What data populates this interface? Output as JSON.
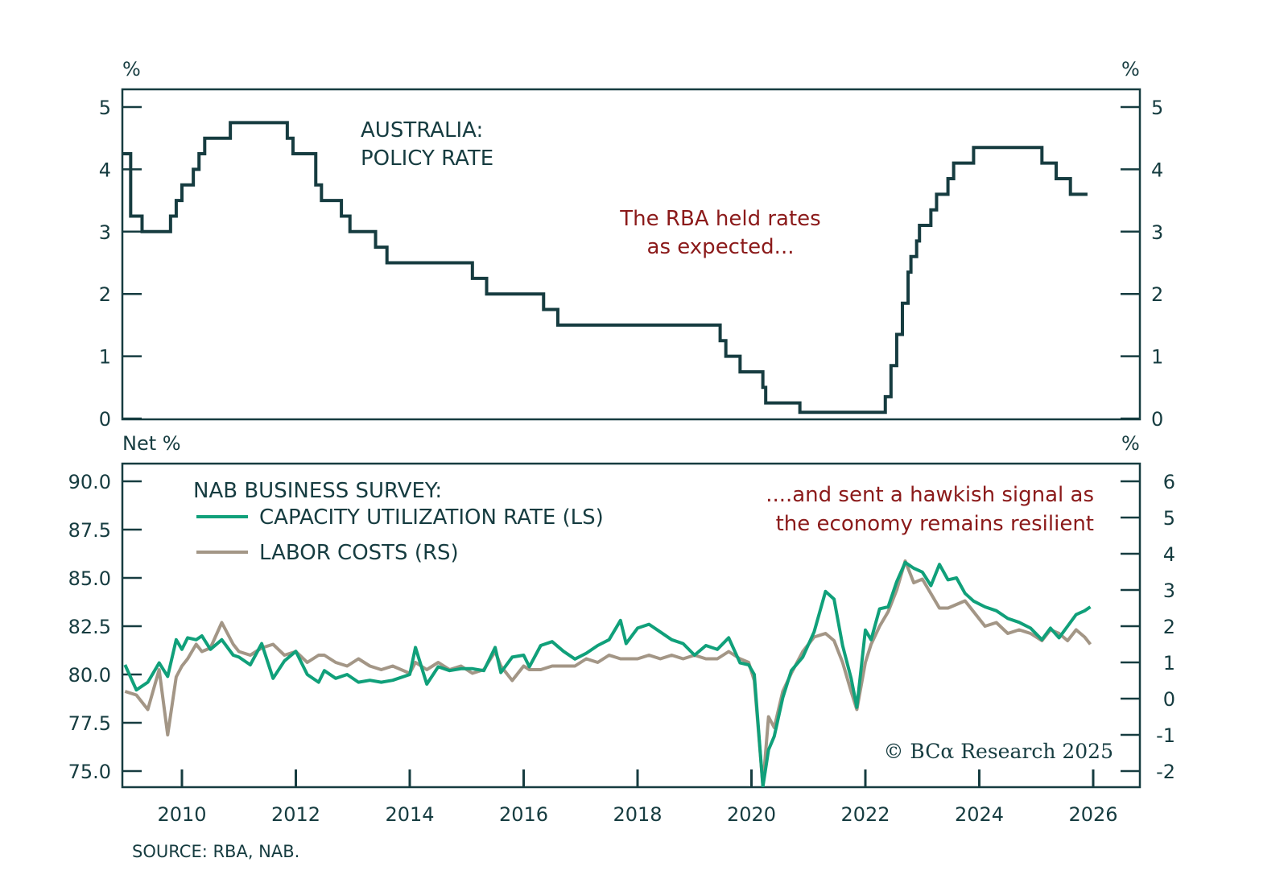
{
  "chart_data": [
    {
      "type": "line",
      "panel": "top",
      "title": "AUSTRALIA: POLICY RATE",
      "title_lines": [
        "AUSTRALIA:",
        "POLICY RATE"
      ],
      "annotation_lines": [
        "The RBA held rates",
        "as expected..."
      ],
      "ylabel_left": "%",
      "ylabel_right": "%",
      "ylim": [
        0,
        5
      ],
      "yticks": [
        0,
        1,
        2,
        3,
        4,
        5
      ],
      "xlim": [
        2009.0,
        2026.85
      ],
      "grid": false,
      "step": true,
      "series": [
        {
          "name": "Policy Rate",
          "color": "#163c40",
          "points": [
            [
              2009.0,
              4.25
            ],
            [
              2009.1,
              3.25
            ],
            [
              2009.3,
              3.0
            ],
            [
              2009.8,
              3.25
            ],
            [
              2009.9,
              3.5
            ],
            [
              2010.0,
              3.75
            ],
            [
              2010.2,
              4.0
            ],
            [
              2010.3,
              4.25
            ],
            [
              2010.4,
              4.5
            ],
            [
              2010.85,
              4.75
            ],
            [
              2011.85,
              4.5
            ],
            [
              2011.95,
              4.25
            ],
            [
              2012.35,
              3.75
            ],
            [
              2012.45,
              3.5
            ],
            [
              2012.8,
              3.25
            ],
            [
              2012.95,
              3.0
            ],
            [
              2013.4,
              2.75
            ],
            [
              2013.6,
              2.5
            ],
            [
              2015.1,
              2.25
            ],
            [
              2015.35,
              2.0
            ],
            [
              2016.35,
              1.75
            ],
            [
              2016.6,
              1.5
            ],
            [
              2019.45,
              1.25
            ],
            [
              2019.55,
              1.0
            ],
            [
              2019.8,
              0.75
            ],
            [
              2020.2,
              0.5
            ],
            [
              2020.25,
              0.25
            ],
            [
              2020.85,
              0.1
            ],
            [
              2022.35,
              0.35
            ],
            [
              2022.45,
              0.85
            ],
            [
              2022.55,
              1.35
            ],
            [
              2022.65,
              1.85
            ],
            [
              2022.75,
              2.35
            ],
            [
              2022.8,
              2.6
            ],
            [
              2022.9,
              2.85
            ],
            [
              2022.95,
              3.1
            ],
            [
              2023.15,
              3.35
            ],
            [
              2023.25,
              3.6
            ],
            [
              2023.45,
              3.85
            ],
            [
              2023.55,
              4.1
            ],
            [
              2023.9,
              4.35
            ],
            [
              2025.1,
              4.1
            ],
            [
              2025.35,
              3.85
            ],
            [
              2025.6,
              3.6
            ],
            [
              2025.9,
              3.6
            ]
          ]
        }
      ]
    },
    {
      "type": "line",
      "panel": "bottom",
      "title": "NAB BUSINESS SURVEY:",
      "annotation_lines": [
        "....and sent a hawkish signal as",
        "the economy remains resilient"
      ],
      "ylabel_left": "Net %",
      "ylabel_right": "%",
      "ylim_left": [
        74.5,
        90.8
      ],
      "yticks_left": [
        "75.0",
        "77.5",
        "80.0",
        "82.5",
        "85.0",
        "87.5",
        "90.0"
      ],
      "ylim_right": [
        -2.4,
        6.6
      ],
      "yticks_right": [
        "-2",
        "-1",
        "0",
        "1",
        "2",
        "3",
        "4",
        "5",
        "6"
      ],
      "xlim": [
        2009.0,
        2026.85
      ],
      "xticks": [
        "2010",
        "2012",
        "2014",
        "2016",
        "2018",
        "2020",
        "2022",
        "2024",
        "2026"
      ],
      "grid": false,
      "series": [
        {
          "name": "CAPACITY UTILIZATION RATE (LS)",
          "axis": "left",
          "color": "#10a07a",
          "x": [
            2009.0,
            2009.2,
            2009.4,
            2009.6,
            2009.75,
            2009.9,
            2010.0,
            2010.1,
            2010.25,
            2010.35,
            2010.5,
            2010.7,
            2010.9,
            2011.0,
            2011.2,
            2011.4,
            2011.6,
            2011.8,
            2012.0,
            2012.2,
            2012.4,
            2012.5,
            2012.7,
            2012.9,
            2013.1,
            2013.3,
            2013.5,
            2013.7,
            2014.0,
            2014.1,
            2014.3,
            2014.5,
            2014.7,
            2014.9,
            2015.1,
            2015.3,
            2015.5,
            2015.6,
            2015.8,
            2016.0,
            2016.1,
            2016.3,
            2016.5,
            2016.7,
            2016.9,
            2017.1,
            2017.3,
            2017.5,
            2017.7,
            2017.8,
            2018.0,
            2018.2,
            2018.4,
            2018.6,
            2018.8,
            2019.0,
            2019.2,
            2019.4,
            2019.6,
            2019.8,
            2019.95,
            2020.05,
            2020.2,
            2020.3,
            2020.4,
            2020.55,
            2020.7,
            2020.9,
            2021.1,
            2021.3,
            2021.45,
            2021.6,
            2021.75,
            2021.85,
            2022.0,
            2022.1,
            2022.25,
            2022.4,
            2022.55,
            2022.7,
            2022.85,
            2023.0,
            2023.15,
            2023.3,
            2023.45,
            2023.6,
            2023.75,
            2023.9,
            2024.1,
            2024.3,
            2024.5,
            2024.7,
            2024.9,
            2025.1,
            2025.25,
            2025.4,
            2025.55,
            2025.7,
            2025.85,
            2025.95
          ],
          "values": [
            80.5,
            79.2,
            79.6,
            80.6,
            79.9,
            81.8,
            81.3,
            81.9,
            81.8,
            82.0,
            81.3,
            81.8,
            81.0,
            80.9,
            80.5,
            81.6,
            79.8,
            80.7,
            81.2,
            80.0,
            79.6,
            80.2,
            79.8,
            80.0,
            79.6,
            79.7,
            79.6,
            79.7,
            80.0,
            81.4,
            79.5,
            80.4,
            80.2,
            80.3,
            80.3,
            80.2,
            81.4,
            80.1,
            80.9,
            81.0,
            80.4,
            81.5,
            81.7,
            81.2,
            80.8,
            81.1,
            81.5,
            81.8,
            82.8,
            81.6,
            82.4,
            82.6,
            82.2,
            81.8,
            81.6,
            81.0,
            81.5,
            81.3,
            81.9,
            80.6,
            80.5,
            80.0,
            74.2,
            76.1,
            76.8,
            78.8,
            80.2,
            80.9,
            82.2,
            84.3,
            83.9,
            81.5,
            79.8,
            78.3,
            82.3,
            81.8,
            83.4,
            83.5,
            84.8,
            85.8,
            85.5,
            85.3,
            84.6,
            85.7,
            84.9,
            85.0,
            84.2,
            83.8,
            83.5,
            83.3,
            82.9,
            82.7,
            82.4,
            81.8,
            82.4,
            81.9,
            82.5,
            83.1,
            83.3,
            83.5
          ]
        },
        {
          "name": "LABOR COSTS (RS)",
          "axis": "right",
          "color": "#a39686",
          "x": [
            2009.0,
            2009.2,
            2009.4,
            2009.6,
            2009.75,
            2009.9,
            2010.0,
            2010.1,
            2010.25,
            2010.35,
            2010.5,
            2010.7,
            2010.9,
            2011.0,
            2011.2,
            2011.4,
            2011.6,
            2011.8,
            2012.0,
            2012.2,
            2012.4,
            2012.5,
            2012.7,
            2012.9,
            2013.1,
            2013.3,
            2013.5,
            2013.7,
            2014.0,
            2014.1,
            2014.3,
            2014.5,
            2014.7,
            2014.9,
            2015.1,
            2015.3,
            2015.5,
            2015.6,
            2015.8,
            2016.0,
            2016.1,
            2016.3,
            2016.5,
            2016.7,
            2016.9,
            2017.1,
            2017.3,
            2017.5,
            2017.7,
            2017.8,
            2018.0,
            2018.2,
            2018.4,
            2018.6,
            2018.8,
            2019.0,
            2019.2,
            2019.4,
            2019.6,
            2019.8,
            2019.95,
            2020.05,
            2020.2,
            2020.3,
            2020.4,
            2020.55,
            2020.7,
            2020.9,
            2021.1,
            2021.3,
            2021.45,
            2021.6,
            2021.75,
            2021.85,
            2022.0,
            2022.1,
            2022.25,
            2022.4,
            2022.55,
            2022.7,
            2022.85,
            2023.0,
            2023.15,
            2023.3,
            2023.45,
            2023.6,
            2023.75,
            2023.9,
            2024.1,
            2024.3,
            2024.5,
            2024.7,
            2024.9,
            2025.1,
            2025.25,
            2025.4,
            2025.55,
            2025.7,
            2025.85,
            2025.95
          ],
          "values": [
            0.2,
            0.1,
            -0.3,
            0.8,
            -1.0,
            0.6,
            0.9,
            1.1,
            1.5,
            1.3,
            1.4,
            2.1,
            1.5,
            1.3,
            1.2,
            1.4,
            1.5,
            1.2,
            1.3,
            1.0,
            1.2,
            1.2,
            1.0,
            0.9,
            1.1,
            0.9,
            0.8,
            0.9,
            0.7,
            1.0,
            0.8,
            1.0,
            0.8,
            0.9,
            0.7,
            0.8,
            1.3,
            0.9,
            0.5,
            0.9,
            0.8,
            0.8,
            0.9,
            0.9,
            0.9,
            1.1,
            1.0,
            1.2,
            1.1,
            1.1,
            1.1,
            1.2,
            1.1,
            1.2,
            1.1,
            1.2,
            1.1,
            1.1,
            1.3,
            1.1,
            1.0,
            0.5,
            -2.4,
            -0.5,
            -0.8,
            0.2,
            0.7,
            1.3,
            1.7,
            1.8,
            1.6,
            1.0,
            0.2,
            -0.3,
            1.0,
            1.5,
            2.0,
            2.4,
            3.0,
            3.8,
            3.2,
            3.3,
            2.9,
            2.5,
            2.5,
            2.6,
            2.7,
            2.4,
            2.0,
            2.1,
            1.8,
            1.9,
            1.8,
            1.6,
            1.9,
            1.8,
            1.6,
            1.9,
            1.7,
            1.5
          ]
        }
      ]
    }
  ],
  "labels": {
    "top_unit_left": "%",
    "top_unit_right": "%",
    "bottom_unit_left": "Net %",
    "bottom_unit_right": "%",
    "top_title_1": "AUSTRALIA:",
    "top_title_2": "POLICY RATE",
    "top_annotation_1": "The RBA held rates",
    "top_annotation_2": "as expected...",
    "bottom_title": "NAB BUSINESS SURVEY:",
    "legend_1": "CAPACITY UTILIZATION RATE (LS)",
    "legend_2": "LABOR COSTS (RS)",
    "bottom_annotation_1": "....and sent a hawkish signal as",
    "bottom_annotation_2": "the economy remains resilient",
    "copyright": "© BCα Research 2025",
    "source": "SOURCE: RBA, NAB."
  },
  "colors": {
    "axis": "#163c40",
    "policy_rate": "#163c40",
    "capacity": "#10a07a",
    "labor": "#a39686",
    "annotation": "#8b1a1a"
  }
}
